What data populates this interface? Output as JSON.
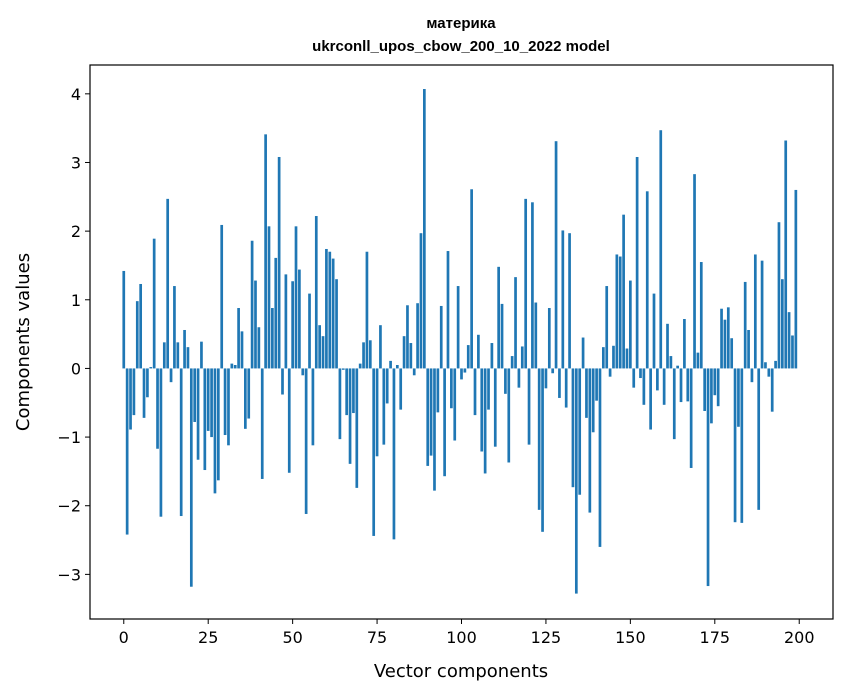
{
  "chart_data": {
    "type": "bar",
    "title": "материка",
    "subtitle": "ukrconll_upos_cbow_200_10_2022 model",
    "xlabel": "Vector components",
    "ylabel": "Components values",
    "xlim": [
      -10,
      210
    ],
    "ylim": [
      -3.65,
      4.42
    ],
    "xticks": [
      0,
      25,
      50,
      75,
      100,
      125,
      150,
      175,
      200
    ],
    "xtick_labels": [
      "0",
      "25",
      "50",
      "75",
      "100",
      "125",
      "150",
      "175",
      "200"
    ],
    "yticks": [
      -3,
      -2,
      -1,
      0,
      1,
      2,
      3,
      4
    ],
    "ytick_labels": [
      "−3",
      "−2",
      "−1",
      "0",
      "1",
      "2",
      "3",
      "4"
    ],
    "bar_color": "#1f77b4",
    "grid": false,
    "x": [
      0,
      1,
      2,
      3,
      4,
      5,
      6,
      7,
      8,
      9,
      10,
      11,
      12,
      13,
      14,
      15,
      16,
      17,
      18,
      19,
      20,
      21,
      22,
      23,
      24,
      25,
      26,
      27,
      28,
      29,
      30,
      31,
      32,
      33,
      34,
      35,
      36,
      37,
      38,
      39,
      40,
      41,
      42,
      43,
      44,
      45,
      46,
      47,
      48,
      49,
      50,
      51,
      52,
      53,
      54,
      55,
      56,
      57,
      58,
      59,
      60,
      61,
      62,
      63,
      64,
      65,
      66,
      67,
      68,
      69,
      70,
      71,
      72,
      73,
      74,
      75,
      76,
      77,
      78,
      79,
      80,
      81,
      82,
      83,
      84,
      85,
      86,
      87,
      88,
      89,
      90,
      91,
      92,
      93,
      94,
      95,
      96,
      97,
      98,
      99,
      100,
      101,
      102,
      103,
      104,
      105,
      106,
      107,
      108,
      109,
      110,
      111,
      112,
      113,
      114,
      115,
      116,
      117,
      118,
      119,
      120,
      121,
      122,
      123,
      124,
      125,
      126,
      127,
      128,
      129,
      130,
      131,
      132,
      133,
      134,
      135,
      136,
      137,
      138,
      139,
      140,
      141,
      142,
      143,
      144,
      145,
      146,
      147,
      148,
      149,
      150,
      151,
      152,
      153,
      154,
      155,
      156,
      157,
      158,
      159,
      160,
      161,
      162,
      163,
      164,
      165,
      166,
      167,
      168,
      169,
      170,
      171,
      172,
      173,
      174,
      175,
      176,
      177,
      178,
      179,
      180,
      181,
      182,
      183,
      184,
      185,
      186,
      187,
      188,
      189,
      190,
      191,
      192,
      193,
      194,
      195,
      196,
      197,
      198,
      199
    ],
    "values": [
      1.42,
      -2.42,
      -0.89,
      -0.68,
      0.98,
      1.23,
      -0.72,
      -0.42,
      0.02,
      1.89,
      -1.17,
      -2.16,
      0.38,
      2.47,
      -0.2,
      1.2,
      0.38,
      -2.15,
      0.56,
      0.31,
      -3.18,
      -0.78,
      -1.33,
      0.39,
      -1.48,
      -0.91,
      -1.0,
      -1.82,
      -1.63,
      2.09,
      -0.97,
      -1.12,
      0.07,
      0.05,
      0.88,
      0.54,
      -0.88,
      -0.73,
      1.86,
      1.28,
      0.6,
      -1.61,
      3.41,
      2.07,
      0.88,
      1.61,
      3.08,
      -0.38,
      1.37,
      -1.52,
      1.27,
      2.07,
      1.44,
      -0.1,
      -2.12,
      1.09,
      -1.12,
      2.22,
      0.63,
      0.47,
      1.74,
      1.7,
      1.6,
      1.3,
      -1.03,
      -0.02,
      -0.68,
      -1.39,
      -0.65,
      -1.74,
      0.07,
      0.38,
      1.7,
      0.41,
      -2.44,
      -1.28,
      0.63,
      -1.11,
      -0.51,
      0.11,
      -2.49,
      0.05,
      -0.6,
      0.47,
      0.92,
      0.37,
      -0.1,
      0.95,
      1.97,
      4.07,
      -1.42,
      -1.27,
      -1.78,
      -0.64,
      0.91,
      -1.57,
      1.71,
      -0.58,
      -1.05,
      1.2,
      -0.16,
      -0.06,
      0.34,
      2.61,
      -0.68,
      0.49,
      -1.21,
      -1.53,
      -0.6,
      0.37,
      -1.14,
      1.48,
      0.94,
      -0.37,
      -1.37,
      0.18,
      1.33,
      -0.28,
      0.32,
      2.47,
      -1.11,
      2.42,
      0.96,
      -2.06,
      -2.38,
      -0.29,
      0.88,
      -0.07,
      3.31,
      -0.43,
      2.01,
      -0.57,
      1.97,
      -1.73,
      -3.28,
      -1.84,
      0.45,
      -0.72,
      -2.1,
      -0.93,
      -0.47,
      -2.6,
      0.31,
      1.2,
      -0.12,
      0.33,
      1.66,
      1.63,
      2.24,
      0.29,
      1.28,
      -0.28,
      3.08,
      -0.14,
      -0.53,
      2.58,
      -0.89,
      1.09,
      -0.32,
      3.47,
      -0.53,
      0.65,
      0.18,
      -1.03,
      0.04,
      -0.49,
      0.72,
      -0.48,
      -1.45,
      2.83,
      0.23,
      1.55,
      -0.62,
      -3.17,
      -0.8,
      -0.39,
      -0.55,
      0.87,
      0.71,
      0.89,
      0.44,
      -2.24,
      -0.85,
      -2.25,
      1.26,
      0.56,
      -0.2,
      1.66,
      -2.06,
      1.57,
      0.09,
      -0.12,
      -0.63,
      0.11,
      2.13,
      1.3,
      3.32,
      0.82,
      0.48,
      2.6
    ]
  }
}
